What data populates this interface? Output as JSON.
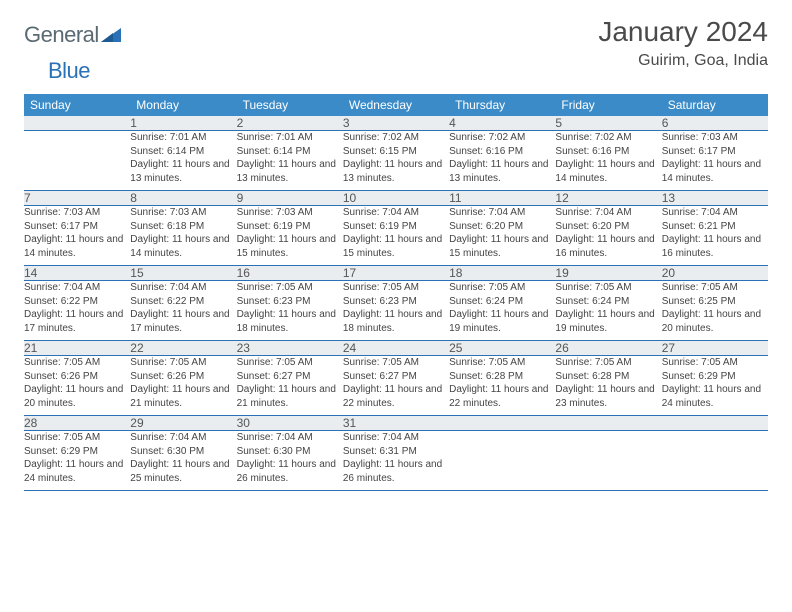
{
  "brand": {
    "general": "General",
    "blue": "Blue"
  },
  "title": "January 2024",
  "location": "Guirim, Goa, India",
  "colors": {
    "header_bg": "#3b8bc8",
    "header_text": "#ffffff",
    "daynum_bg": "#e9edef",
    "border": "#2a72b5",
    "text": "#444444",
    "brand_gray": "#5a6a72",
    "brand_blue": "#2a72b5"
  },
  "weekdays": [
    "Sunday",
    "Monday",
    "Tuesday",
    "Wednesday",
    "Thursday",
    "Friday",
    "Saturday"
  ],
  "weeks": [
    {
      "nums": [
        "",
        "1",
        "2",
        "3",
        "4",
        "5",
        "6"
      ],
      "cells": [
        null,
        {
          "sunrise": "7:01 AM",
          "sunset": "6:14 PM",
          "daylight": "11 hours and 13 minutes."
        },
        {
          "sunrise": "7:01 AM",
          "sunset": "6:14 PM",
          "daylight": "11 hours and 13 minutes."
        },
        {
          "sunrise": "7:02 AM",
          "sunset": "6:15 PM",
          "daylight": "11 hours and 13 minutes."
        },
        {
          "sunrise": "7:02 AM",
          "sunset": "6:16 PM",
          "daylight": "11 hours and 13 minutes."
        },
        {
          "sunrise": "7:02 AM",
          "sunset": "6:16 PM",
          "daylight": "11 hours and 14 minutes."
        },
        {
          "sunrise": "7:03 AM",
          "sunset": "6:17 PM",
          "daylight": "11 hours and 14 minutes."
        }
      ]
    },
    {
      "nums": [
        "7",
        "8",
        "9",
        "10",
        "11",
        "12",
        "13"
      ],
      "cells": [
        {
          "sunrise": "7:03 AM",
          "sunset": "6:17 PM",
          "daylight": "11 hours and 14 minutes."
        },
        {
          "sunrise": "7:03 AM",
          "sunset": "6:18 PM",
          "daylight": "11 hours and 14 minutes."
        },
        {
          "sunrise": "7:03 AM",
          "sunset": "6:19 PM",
          "daylight": "11 hours and 15 minutes."
        },
        {
          "sunrise": "7:04 AM",
          "sunset": "6:19 PM",
          "daylight": "11 hours and 15 minutes."
        },
        {
          "sunrise": "7:04 AM",
          "sunset": "6:20 PM",
          "daylight": "11 hours and 15 minutes."
        },
        {
          "sunrise": "7:04 AM",
          "sunset": "6:20 PM",
          "daylight": "11 hours and 16 minutes."
        },
        {
          "sunrise": "7:04 AM",
          "sunset": "6:21 PM",
          "daylight": "11 hours and 16 minutes."
        }
      ]
    },
    {
      "nums": [
        "14",
        "15",
        "16",
        "17",
        "18",
        "19",
        "20"
      ],
      "cells": [
        {
          "sunrise": "7:04 AM",
          "sunset": "6:22 PM",
          "daylight": "11 hours and 17 minutes."
        },
        {
          "sunrise": "7:04 AM",
          "sunset": "6:22 PM",
          "daylight": "11 hours and 17 minutes."
        },
        {
          "sunrise": "7:05 AM",
          "sunset": "6:23 PM",
          "daylight": "11 hours and 18 minutes."
        },
        {
          "sunrise": "7:05 AM",
          "sunset": "6:23 PM",
          "daylight": "11 hours and 18 minutes."
        },
        {
          "sunrise": "7:05 AM",
          "sunset": "6:24 PM",
          "daylight": "11 hours and 19 minutes."
        },
        {
          "sunrise": "7:05 AM",
          "sunset": "6:24 PM",
          "daylight": "11 hours and 19 minutes."
        },
        {
          "sunrise": "7:05 AM",
          "sunset": "6:25 PM",
          "daylight": "11 hours and 20 minutes."
        }
      ]
    },
    {
      "nums": [
        "21",
        "22",
        "23",
        "24",
        "25",
        "26",
        "27"
      ],
      "cells": [
        {
          "sunrise": "7:05 AM",
          "sunset": "6:26 PM",
          "daylight": "11 hours and 20 minutes."
        },
        {
          "sunrise": "7:05 AM",
          "sunset": "6:26 PM",
          "daylight": "11 hours and 21 minutes."
        },
        {
          "sunrise": "7:05 AM",
          "sunset": "6:27 PM",
          "daylight": "11 hours and 21 minutes."
        },
        {
          "sunrise": "7:05 AM",
          "sunset": "6:27 PM",
          "daylight": "11 hours and 22 minutes."
        },
        {
          "sunrise": "7:05 AM",
          "sunset": "6:28 PM",
          "daylight": "11 hours and 22 minutes."
        },
        {
          "sunrise": "7:05 AM",
          "sunset": "6:28 PM",
          "daylight": "11 hours and 23 minutes."
        },
        {
          "sunrise": "7:05 AM",
          "sunset": "6:29 PM",
          "daylight": "11 hours and 24 minutes."
        }
      ]
    },
    {
      "nums": [
        "28",
        "29",
        "30",
        "31",
        "",
        "",
        ""
      ],
      "cells": [
        {
          "sunrise": "7:05 AM",
          "sunset": "6:29 PM",
          "daylight": "11 hours and 24 minutes."
        },
        {
          "sunrise": "7:04 AM",
          "sunset": "6:30 PM",
          "daylight": "11 hours and 25 minutes."
        },
        {
          "sunrise": "7:04 AM",
          "sunset": "6:30 PM",
          "daylight": "11 hours and 26 minutes."
        },
        {
          "sunrise": "7:04 AM",
          "sunset": "6:31 PM",
          "daylight": "11 hours and 26 minutes."
        },
        null,
        null,
        null
      ]
    }
  ],
  "labels": {
    "sunrise": "Sunrise:",
    "sunset": "Sunset:",
    "daylight": "Daylight:"
  }
}
